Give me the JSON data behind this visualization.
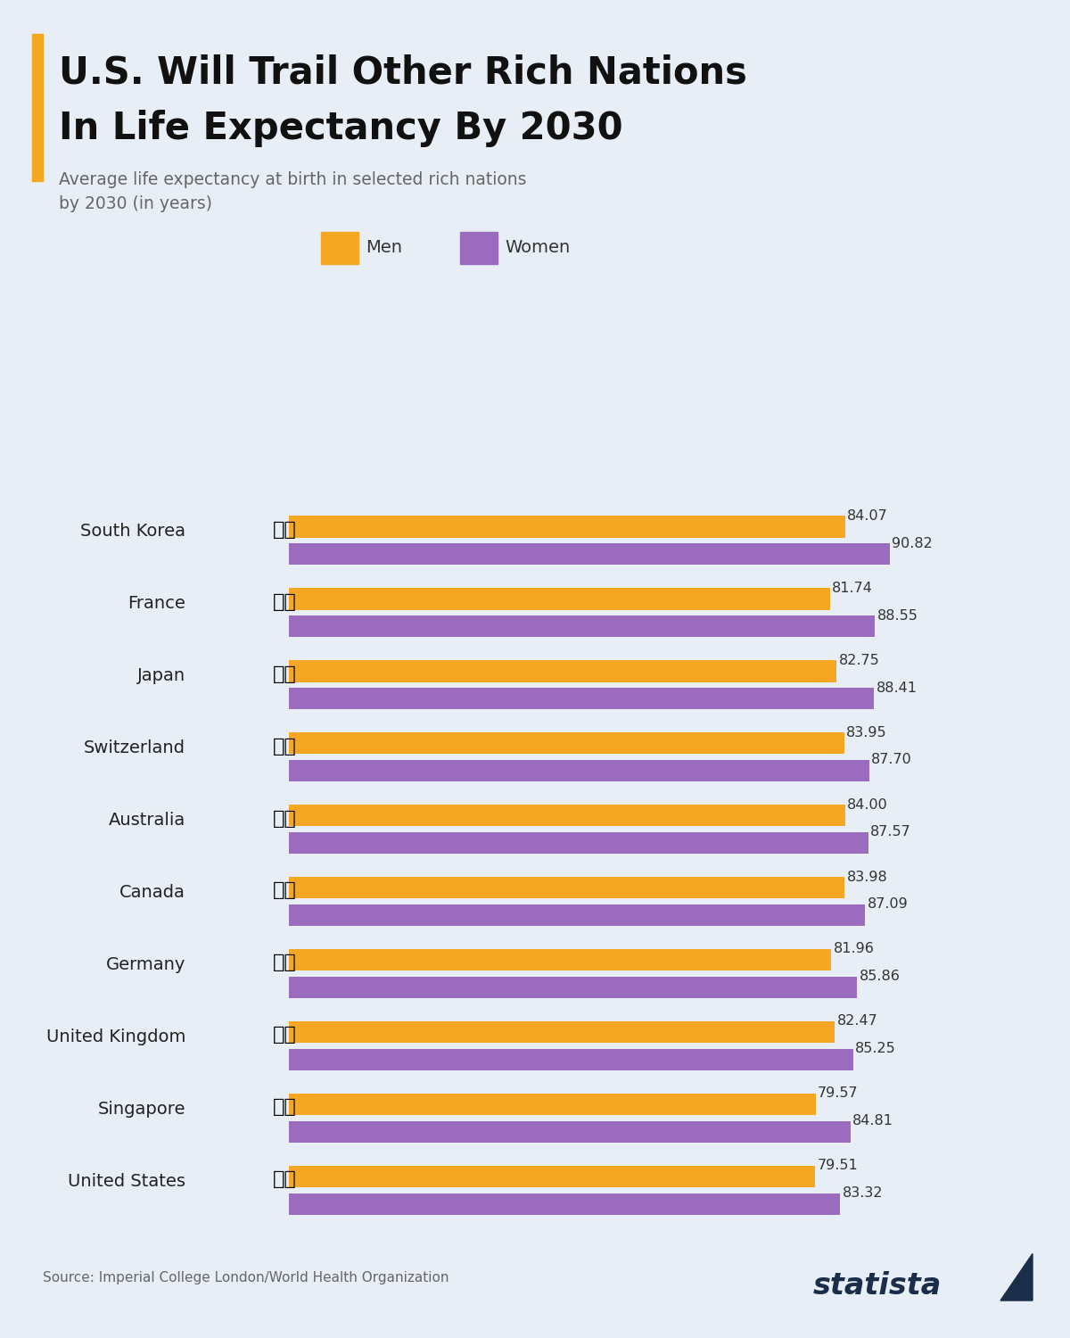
{
  "title_line1": "U.S. Will Trail Other Rich Nations",
  "title_line2": "In Life Expectancy By 2030",
  "subtitle": "Average life expectancy at birth in selected rich nations\nby 2030 (in years)",
  "source": "Source: Imperial College London/World Health Organization",
  "background_color": "#e8eef5",
  "bar_color_men": "#F5A623",
  "bar_color_women": "#9B6BBE",
  "title_color": "#111111",
  "subtitle_color": "#666666",
  "accent_bar_color": "#F5A623",
  "countries": [
    "South Korea",
    "France",
    "Japan",
    "Switzerland",
    "Australia",
    "Canada",
    "Germany",
    "United Kingdom",
    "Singapore",
    "United States"
  ],
  "men_values": [
    84.07,
    81.74,
    82.75,
    83.95,
    84.0,
    83.98,
    81.96,
    82.47,
    79.57,
    79.51
  ],
  "women_values": [
    90.82,
    88.55,
    88.41,
    87.7,
    87.57,
    87.09,
    85.86,
    85.25,
    84.81,
    83.32
  ],
  "men_labels": [
    "84.07",
    "81.74",
    "82.75",
    "83.95",
    "84.00",
    "83.98",
    "81.96",
    "82.47",
    "79.57",
    "79.51"
  ],
  "women_labels": [
    "90.82",
    "88.55",
    "88.41",
    "87.70",
    "87.57",
    "87.09",
    "85.86",
    "85.25",
    "84.81",
    "83.32"
  ],
  "xlim_min": 0,
  "xlim_max": 97,
  "legend_men": "Men",
  "legend_women": "Women"
}
